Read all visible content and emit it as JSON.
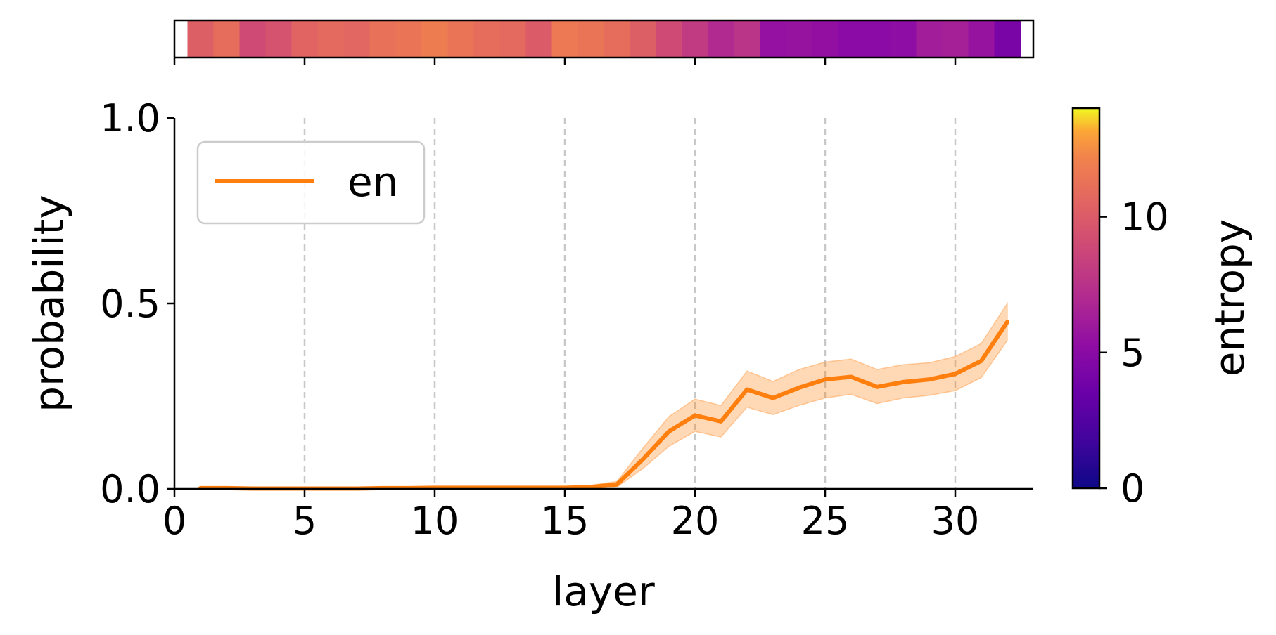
{
  "chart_data": {
    "type": "line",
    "xlabel": "layer",
    "ylabel": "probability",
    "xlim": [
      0,
      33
    ],
    "ylim": [
      0,
      1
    ],
    "xticks": [
      "0",
      "5",
      "10",
      "15",
      "20",
      "25",
      "30"
    ],
    "yticks": [
      "0.0",
      "0.5",
      "1.0"
    ],
    "grid": "vertical dashed at x = 5, 10, 15, 20, 25, 30",
    "legend_position": "upper-left",
    "series": [
      {
        "name": "en",
        "color": "#ff7f0e",
        "x": [
          1,
          2,
          3,
          4,
          5,
          6,
          7,
          8,
          9,
          10,
          11,
          12,
          13,
          14,
          15,
          16,
          17,
          18,
          19,
          20,
          21,
          22,
          23,
          24,
          25,
          26,
          27,
          28,
          29,
          30,
          31,
          32
        ],
        "y": [
          0.002,
          0.002,
          0.001,
          0.001,
          0.001,
          0.001,
          0.001,
          0.002,
          0.002,
          0.003,
          0.003,
          0.003,
          0.003,
          0.003,
          0.003,
          0.005,
          0.012,
          0.08,
          0.155,
          0.198,
          0.182,
          0.268,
          0.245,
          0.273,
          0.295,
          0.302,
          0.275,
          0.288,
          0.295,
          0.31,
          0.345,
          0.45
        ],
        "y_lower": [
          0.0,
          0.0,
          0.0,
          0.0,
          0.0,
          0.0,
          0.0,
          0.0,
          0.0,
          0.0,
          0.0,
          0.0,
          0.0,
          0.0,
          0.0,
          0.0,
          0.005,
          0.055,
          0.115,
          0.155,
          0.14,
          0.22,
          0.2,
          0.225,
          0.245,
          0.255,
          0.23,
          0.245,
          0.252,
          0.265,
          0.3,
          0.4
        ],
        "y_upper": [
          0.004,
          0.004,
          0.003,
          0.003,
          0.003,
          0.003,
          0.003,
          0.004,
          0.004,
          0.006,
          0.006,
          0.006,
          0.006,
          0.006,
          0.006,
          0.01,
          0.02,
          0.11,
          0.195,
          0.242,
          0.225,
          0.318,
          0.29,
          0.322,
          0.342,
          0.35,
          0.322,
          0.335,
          0.34,
          0.357,
          0.392,
          0.5
        ]
      }
    ],
    "entropy_strip": {
      "values": [
        10.2,
        11.0,
        9.0,
        9.5,
        10.5,
        10.8,
        10.6,
        11.2,
        11.4,
        11.8,
        11.4,
        11.0,
        10.8,
        10.0,
        11.6,
        11.4,
        11.0,
        10.2,
        9.0,
        8.0,
        7.0,
        7.6,
        5.5,
        5.6,
        5.4,
        5.0,
        5.0,
        5.2,
        6.2,
        6.4,
        5.6,
        4.2
      ]
    },
    "colorbar": {
      "label": "entropy",
      "min": 0,
      "max": 14,
      "ticks": [
        "0",
        "5",
        "10"
      ],
      "colormap": "plasma"
    }
  }
}
